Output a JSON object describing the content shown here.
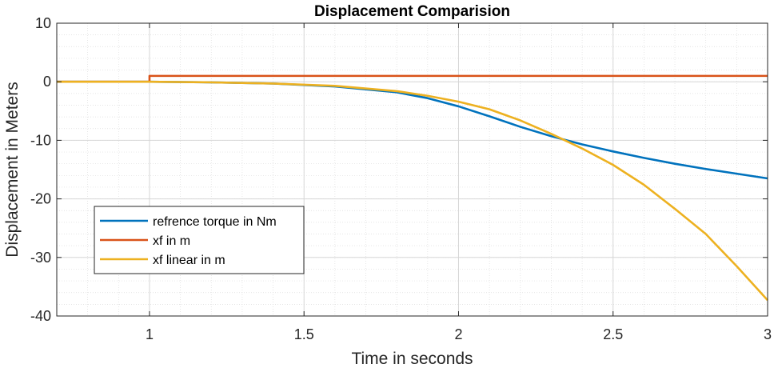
{
  "chart_data": {
    "type": "line",
    "title": "Displacement Comparision",
    "xlabel": "Time in seconds",
    "ylabel": "Displacement in Meters",
    "xlim": [
      0.7,
      3
    ],
    "ylim": [
      -40,
      10
    ],
    "xticks": [
      1,
      1.5,
      2,
      2.5,
      3
    ],
    "xtick_labels": [
      "1",
      "1.5",
      "2",
      "2.5",
      "3"
    ],
    "yticks": [
      10,
      0,
      -10,
      -20,
      -30,
      -40
    ],
    "ytick_labels": [
      "10",
      "0",
      "-10",
      "-20",
      "-30",
      "-40"
    ],
    "grid": true,
    "minor_grid": true,
    "legend_position": "lower-left",
    "series": [
      {
        "name": "refrence torque in Nm",
        "color": "#0072BD",
        "x": [
          0.7,
          1.0,
          1.2,
          1.4,
          1.6,
          1.8,
          1.9,
          2.0,
          2.1,
          2.2,
          2.3,
          2.4,
          2.5,
          2.6,
          2.7,
          2.8,
          2.9,
          3.0
        ],
        "y": [
          0,
          0,
          -0.1,
          -0.3,
          -0.8,
          -1.8,
          -2.8,
          -4.2,
          -5.9,
          -7.7,
          -9.3,
          -10.7,
          -11.9,
          -13.0,
          -14.0,
          -14.9,
          -15.7,
          -16.5
        ]
      },
      {
        "name": "xf in m",
        "color": "#D95319",
        "x": [
          0.7,
          1.0,
          1.0,
          3.0
        ],
        "y": [
          0,
          0,
          1,
          1
        ]
      },
      {
        "name": "xf linear in m",
        "color": "#EDB120",
        "x": [
          0.7,
          1.0,
          1.2,
          1.4,
          1.6,
          1.8,
          1.9,
          2.0,
          2.1,
          2.2,
          2.3,
          2.4,
          2.5,
          2.6,
          2.7,
          2.8,
          2.9,
          3.0
        ],
        "y": [
          0,
          0,
          -0.1,
          -0.3,
          -0.7,
          -1.6,
          -2.4,
          -3.4,
          -4.7,
          -6.6,
          -8.9,
          -11.4,
          -14.2,
          -17.6,
          -21.7,
          -26.0,
          -31.5,
          -37.3
        ]
      }
    ]
  }
}
